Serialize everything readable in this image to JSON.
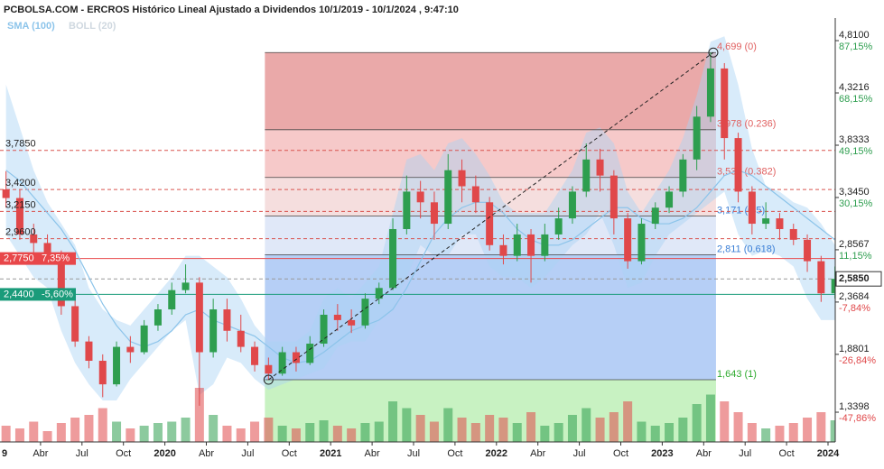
{
  "chart_data": {
    "type": "candlestick",
    "title": "PCBOLSA.COM - ERCROS Histórico Lineal Ajustado a Dividendos 10/1/2019 - 10/1/2024 , 9:47:10",
    "legend": [
      "SMA (100)",
      "BOLL (20)"
    ],
    "categories": [
      "9",
      null,
      null,
      "Abr",
      null,
      null,
      "Jul",
      null,
      null,
      "Oct",
      null,
      null,
      "2020",
      null,
      null,
      "Abr",
      null,
      null,
      "Jul",
      null,
      null,
      "Oct",
      null,
      null,
      "2021",
      null,
      null,
      "Abr",
      null,
      null,
      "Jul",
      null,
      null,
      "Oct",
      null,
      null,
      "2022",
      null,
      null,
      "Abr",
      null,
      null,
      "Jul",
      null,
      null,
      "Oct",
      null,
      null,
      "2023",
      null,
      null,
      "Abr",
      null,
      null,
      "Jul",
      null,
      null,
      "Oct",
      null,
      null,
      "2024"
    ],
    "open": [
      3.42,
      3.34,
      3.0,
      2.92,
      2.8,
      2.33,
      2.0,
      1.82,
      1.6,
      1.95,
      1.9,
      2.15,
      2.3,
      2.48,
      2.55,
      1.9,
      2.3,
      2.1,
      1.95,
      1.78,
      1.7,
      1.9,
      1.8,
      1.98,
      2.25,
      2.2,
      2.15,
      2.4,
      2.5,
      3.05,
      3.4,
      3.3,
      3.1,
      3.6,
      3.45,
      3.3,
      2.9,
      2.8,
      3.0,
      2.8,
      3.0,
      3.15,
      3.4,
      3.7,
      3.55,
      3.15,
      2.75,
      3.1,
      3.25,
      3.4,
      3.7,
      4.1,
      4.55,
      3.9,
      3.4,
      3.1,
      3.15,
      3.05,
      2.95,
      2.75,
      2.45
    ],
    "high": [
      3.59,
      3.42,
      3.1,
      3.0,
      2.85,
      2.4,
      2.05,
      1.88,
      2.0,
      2.05,
      2.2,
      2.35,
      2.55,
      2.72,
      2.6,
      2.4,
      2.4,
      2.25,
      2.0,
      1.85,
      1.95,
      1.95,
      2.05,
      2.3,
      2.35,
      2.3,
      2.45,
      2.55,
      3.15,
      3.55,
      3.5,
      3.4,
      3.75,
      3.7,
      3.55,
      3.35,
      3.0,
      3.1,
      3.05,
      3.1,
      3.25,
      3.45,
      3.85,
      3.8,
      3.6,
      3.2,
      3.15,
      3.3,
      3.45,
      3.75,
      4.2,
      4.7,
      4.6,
      3.95,
      3.45,
      3.3,
      3.2,
      3.1,
      3.0,
      2.8,
      2.7
    ],
    "low": [
      3.25,
      2.95,
      2.8,
      2.75,
      2.25,
      1.95,
      1.75,
      1.48,
      1.58,
      1.8,
      1.88,
      2.1,
      2.25,
      2.45,
      1.4,
      1.85,
      2.0,
      1.9,
      1.72,
      1.64,
      1.68,
      1.72,
      1.78,
      1.95,
      2.1,
      2.08,
      2.12,
      2.35,
      2.48,
      3.0,
      3.15,
      2.95,
      3.05,
      3.3,
      3.2,
      2.85,
      2.72,
      2.75,
      2.55,
      2.75,
      2.95,
      3.1,
      3.35,
      3.4,
      3.0,
      2.68,
      2.72,
      3.05,
      3.2,
      3.35,
      3.6,
      4.05,
      3.7,
      3.3,
      3.0,
      3.05,
      2.95,
      2.9,
      2.65,
      2.37,
      2.4
    ],
    "close": [
      3.34,
      3.0,
      2.92,
      2.8,
      2.33,
      2.0,
      1.82,
      1.6,
      1.95,
      1.9,
      2.15,
      2.3,
      2.48,
      2.55,
      1.9,
      2.3,
      2.1,
      1.95,
      1.78,
      1.7,
      1.9,
      1.8,
      1.98,
      2.25,
      2.2,
      2.15,
      2.4,
      2.5,
      3.05,
      3.4,
      3.3,
      3.1,
      3.6,
      3.45,
      3.3,
      2.9,
      2.8,
      3.0,
      2.8,
      3.0,
      3.15,
      3.4,
      3.7,
      3.55,
      3.15,
      2.75,
      3.1,
      3.25,
      3.4,
      3.7,
      4.1,
      4.55,
      3.9,
      3.4,
      3.1,
      3.15,
      3.05,
      2.95,
      2.75,
      2.45,
      2.585
    ],
    "volume": [
      12,
      10,
      15,
      8,
      14,
      18,
      20,
      25,
      15,
      10,
      12,
      14,
      15,
      18,
      40,
      20,
      12,
      10,
      15,
      18,
      12,
      10,
      14,
      16,
      12,
      10,
      14,
      15,
      30,
      25,
      20,
      15,
      25,
      18,
      14,
      20,
      18,
      14,
      22,
      12,
      14,
      20,
      25,
      18,
      22,
      30,
      15,
      12,
      14,
      18,
      28,
      35,
      30,
      22,
      14,
      10,
      12,
      14,
      18,
      22,
      16
    ],
    "sma": [
      3.6,
      3.5,
      3.35,
      3.2,
      3.05,
      2.85,
      2.6,
      2.35,
      2.15,
      2.0,
      1.95,
      2.0,
      2.1,
      2.25,
      2.3,
      2.2,
      2.15,
      2.1,
      2.05,
      1.95,
      1.85,
      1.8,
      1.82,
      1.9,
      2.0,
      2.1,
      2.15,
      2.2,
      2.3,
      2.5,
      2.75,
      3.0,
      3.15,
      3.25,
      3.3,
      3.3,
      3.2,
      3.05,
      2.95,
      2.9,
      2.9,
      2.95,
      3.05,
      3.15,
      3.25,
      3.25,
      3.15,
      3.1,
      3.1,
      3.15,
      3.25,
      3.4,
      3.55,
      3.6,
      3.55,
      3.45,
      3.35,
      3.25,
      3.15,
      3.05,
      2.95
    ],
    "boll_upper": [
      4.4,
      4.0,
      3.6,
      3.3,
      3.1,
      2.9,
      2.5,
      2.3,
      2.2,
      2.15,
      2.3,
      2.45,
      2.6,
      2.8,
      2.8,
      2.7,
      2.6,
      2.4,
      2.15,
      2.0,
      2.0,
      2.0,
      2.1,
      2.4,
      2.5,
      2.4,
      2.55,
      2.7,
      3.2,
      3.7,
      3.75,
      3.6,
      3.85,
      3.9,
      3.75,
      3.55,
      3.3,
      3.2,
      3.2,
      3.2,
      3.4,
      3.6,
      3.95,
      4.0,
      3.85,
      3.4,
      3.2,
      3.4,
      3.6,
      3.9,
      4.3,
      4.8,
      4.85,
      4.4,
      3.8,
      3.45,
      3.4,
      3.3,
      3.25,
      3.1,
      2.9
    ],
    "boll_lower": [
      3.0,
      2.8,
      2.6,
      2.5,
      2.1,
      1.8,
      1.6,
      1.45,
      1.45,
      1.65,
      1.8,
      1.95,
      2.1,
      2.2,
      1.5,
      1.6,
      1.85,
      1.8,
      1.65,
      1.55,
      1.6,
      1.65,
      1.7,
      1.75,
      1.95,
      2.0,
      2.0,
      2.2,
      2.3,
      2.6,
      2.9,
      2.8,
      2.8,
      3.0,
      3.0,
      2.7,
      2.6,
      2.6,
      2.5,
      2.6,
      2.75,
      2.9,
      3.0,
      3.2,
      2.9,
      2.5,
      2.55,
      2.8,
      3.0,
      3.1,
      3.2,
      3.3,
      3.4,
      3.0,
      2.8,
      2.85,
      2.8,
      2.7,
      2.4,
      2.2,
      2.2
    ],
    "up_color": "#2e9e4f",
    "down_color": "#e0484a",
    "sma_color": "#8cc4ea",
    "boll_color": "#a9d3f3",
    "ylim": [
      1.062,
      5.021
    ],
    "yticks": [
      {
        "value": 4.81,
        "label": "4,8100"
      },
      {
        "value": 4.3216,
        "label": "4,3216"
      },
      {
        "value": 3.8333,
        "label": "3,8333"
      },
      {
        "value": 3.345,
        "label": "3,3450"
      },
      {
        "value": 2.8567,
        "label": "2,8567"
      },
      {
        "value": 2.3684,
        "label": "2,3684"
      },
      {
        "value": 1.8801,
        "label": "1,8801"
      },
      {
        "value": 1.3398,
        "label": "1,3398"
      }
    ],
    "ytick_pcts": [
      "87,15%",
      "68,15%",
      "49,15%",
      "30,15%",
      "11,15%",
      "-7,84%",
      "-26,84%",
      "-47,86%"
    ],
    "levels": [
      {
        "value": 3.785,
        "label": "3,7850",
        "color": "#d9534f",
        "style": "dashed"
      },
      {
        "value": 3.42,
        "label": "3,4200",
        "color": "#d9534f",
        "style": "dashed"
      },
      {
        "value": 3.215,
        "label": "3,2150",
        "color": "#d9534f",
        "style": "dashed"
      },
      {
        "value": 2.96,
        "label": "2,9600",
        "color": "#d9534f",
        "style": "dashed"
      },
      {
        "value": 2.775,
        "label": "2,7750",
        "tag": "7,35%",
        "color": "#e8474a",
        "style": "solid"
      },
      {
        "value": 2.44,
        "label": "2,4400",
        "tag": "-5,60%",
        "color": "#1a9b7a",
        "style": "solid"
      }
    ],
    "last": {
      "value": 2.585,
      "label": "2,5850"
    },
    "fib_levels": [
      {
        "value": 4.699,
        "label": "4,699 (0)"
      },
      {
        "value": 3.978,
        "label": "3,978 (0.236)"
      },
      {
        "value": 3.532,
        "label": "3,532 (0.382)"
      },
      {
        "value": 3.171,
        "label": "3,171 (0.5)"
      },
      {
        "value": 2.811,
        "label": "2,811 (0.618)"
      },
      {
        "value": 1.643,
        "label": "1,643 (1)"
      }
    ],
    "fib_colors": [
      "#eaa9a9",
      "#f6c9c9",
      "#f5dede",
      "#e0e8f8",
      "#b6cff6",
      "#c8f2c2"
    ],
    "fib_label_colors": [
      "#e06060",
      "#e06060",
      "#e06060",
      "#3b7fd6",
      "#3b7fd6",
      "#2eaa2e"
    ]
  }
}
